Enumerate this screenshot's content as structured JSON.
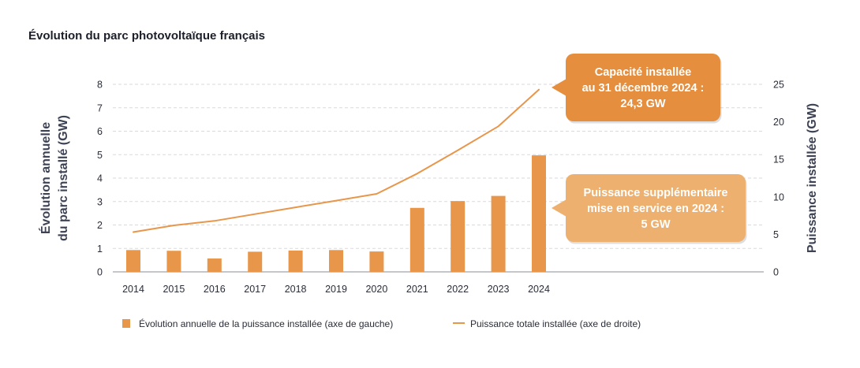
{
  "chart_data": {
    "type": "bar",
    "title": "Évolution du parc photovoltaïque français",
    "categories": [
      "2014",
      "2015",
      "2016",
      "2017",
      "2018",
      "2019",
      "2020",
      "2021",
      "2022",
      "2023",
      "2024"
    ],
    "series": [
      {
        "name": "Évolution annuelle de la puissance installée (axe de gauche)",
        "type": "bar",
        "axis": "left",
        "color": "#E8964A",
        "values": [
          0.93,
          0.9,
          0.57,
          0.86,
          0.91,
          0.93,
          0.87,
          2.73,
          3.02,
          3.24,
          4.97
        ]
      },
      {
        "name": "Puissance totale installée (axe de droite)",
        "type": "line",
        "axis": "right",
        "color": "#E8964A",
        "values": [
          5.3,
          6.2,
          6.8,
          7.7,
          8.6,
          9.5,
          10.4,
          13.1,
          16.2,
          19.4,
          24.3
        ]
      }
    ],
    "ylabel": "Évolution annuelle\ndu parc installé (GW)",
    "ylabel_lines": [
      "Évolution annuelle",
      "du parc installé (GW)"
    ],
    "ylabel_right": "Puissance installée (GW)",
    "ylim": [
      0,
      8
    ],
    "yticks": [
      "0",
      "1",
      "2",
      "3",
      "4",
      "5",
      "6",
      "7",
      "8"
    ],
    "ylim_right": [
      0,
      25
    ],
    "yticks_right": [
      "0",
      "5",
      "10",
      "15",
      "20",
      "25"
    ],
    "grid": true,
    "legend_position": "bottom",
    "annotations": [
      {
        "lines": [
          "Capacité installée",
          "au 31 décembre 2024 :",
          "24,3 GW"
        ],
        "color": "#E48E3E"
      },
      {
        "lines": [
          "Puissance supplémentaire",
          "mise en service en 2024 :",
          "5 GW"
        ],
        "color": "#EDB06E"
      }
    ]
  }
}
